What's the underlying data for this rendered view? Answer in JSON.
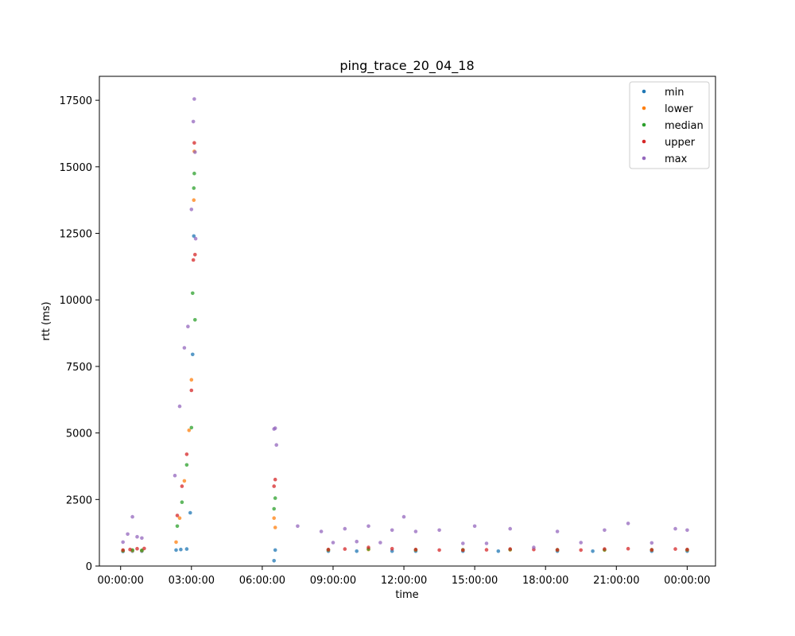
{
  "chart_data": {
    "type": "scatter",
    "title": "ping_trace_20_04_18",
    "xlabel": "time",
    "ylabel": "rtt (ms)",
    "x_unit": "hours of day (tick labels shown as HH:MM:SS)",
    "xlim": [
      -0.9,
      25.2
    ],
    "ylim": [
      0,
      18400
    ],
    "x_ticks": [
      0,
      3,
      6,
      9,
      12,
      15,
      18,
      21,
      24
    ],
    "x_tick_labels": [
      "00:00:00",
      "03:00:00",
      "06:00:00",
      "09:00:00",
      "12:00:00",
      "15:00:00",
      "18:00:00",
      "21:00:00",
      "00:00:00"
    ],
    "y_ticks": [
      0,
      2500,
      5000,
      7500,
      10000,
      12500,
      15000,
      17500
    ],
    "y_tick_labels": [
      "0",
      "2500",
      "5000",
      "7500",
      "10000",
      "12500",
      "15000",
      "17500"
    ],
    "grid": false,
    "legend_position": "top-right",
    "series": [
      {
        "name": "min",
        "color": "#1f77b4",
        "x": [
          0.1,
          0.5,
          0.9,
          2.35,
          2.55,
          2.8,
          2.95,
          3.05,
          3.1,
          6.5,
          6.55,
          8.8,
          10.0,
          11.5,
          12.5,
          14.5,
          16.0,
          18.5,
          20.0,
          22.5,
          24.0
        ],
        "y": [
          550,
          560,
          560,
          600,
          620,
          640,
          2000,
          7950,
          12400,
          200,
          600,
          560,
          560,
          560,
          560,
          560,
          560,
          560,
          560,
          560,
          560
        ]
      },
      {
        "name": "lower",
        "color": "#ff7f0e",
        "x": [
          0.1,
          0.5,
          0.9,
          2.35,
          2.5,
          2.7,
          2.9,
          3.0,
          3.1,
          3.12,
          6.5,
          6.55,
          8.8,
          10.5,
          12.5,
          14.5,
          16.5,
          18.5,
          20.5,
          22.5,
          24.0
        ],
        "y": [
          570,
          580,
          580,
          900,
          1800,
          3200,
          5100,
          7000,
          13750,
          15580,
          1800,
          1450,
          600,
          620,
          600,
          600,
          610,
          600,
          600,
          600,
          600
        ]
      },
      {
        "name": "median",
        "color": "#2ca02c",
        "x": [
          0.1,
          0.5,
          0.9,
          2.4,
          2.6,
          2.8,
          3.0,
          3.05,
          3.1,
          3.12,
          3.15,
          6.5,
          6.55,
          8.8,
          10.5,
          12.5,
          14.5,
          16.5,
          18.5,
          20.5,
          22.5,
          24.0
        ],
        "y": [
          580,
          600,
          590,
          1500,
          2400,
          3800,
          5200,
          10250,
          14200,
          14750,
          9250,
          2150,
          2550,
          610,
          640,
          610,
          610,
          620,
          610,
          610,
          610,
          610
        ]
      },
      {
        "name": "upper",
        "color": "#d62728",
        "x": [
          0.1,
          0.4,
          0.7,
          1.0,
          2.4,
          2.6,
          2.8,
          3.0,
          3.08,
          3.12,
          3.15,
          6.5,
          6.55,
          8.8,
          9.5,
          10.5,
          11.5,
          12.5,
          13.5,
          14.5,
          15.5,
          16.5,
          17.5,
          18.5,
          19.5,
          20.5,
          21.5,
          22.5,
          23.5,
          24.0
        ],
        "y": [
          600,
          620,
          650,
          660,
          1900,
          3000,
          4200,
          6600,
          11500,
          15900,
          11700,
          3000,
          3250,
          620,
          640,
          700,
          650,
          620,
          600,
          600,
          610,
          640,
          620,
          610,
          600,
          640,
          650,
          610,
          640,
          620
        ]
      },
      {
        "name": "max",
        "color": "#9467bd",
        "x": [
          0.1,
          0.3,
          0.5,
          0.7,
          0.9,
          2.3,
          2.5,
          2.7,
          2.85,
          3.0,
          3.08,
          3.12,
          3.15,
          3.18,
          6.5,
          6.55,
          6.6,
          7.5,
          8.5,
          9.0,
          9.5,
          10.0,
          10.5,
          11.0,
          11.5,
          12.0,
          12.5,
          13.5,
          14.5,
          15.0,
          15.5,
          16.5,
          17.5,
          18.5,
          19.5,
          20.5,
          21.5,
          22.5,
          23.5,
          24.0
        ],
        "y": [
          900,
          1200,
          1850,
          1100,
          1050,
          3400,
          6000,
          8200,
          9000,
          13400,
          16700,
          17550,
          15550,
          12300,
          5150,
          5180,
          4550,
          1500,
          1300,
          880,
          1400,
          920,
          1500,
          880,
          1350,
          1850,
          1300,
          1350,
          850,
          1500,
          850,
          1400,
          700,
          1300,
          880,
          1350,
          1600,
          870,
          1400,
          1350
        ]
      }
    ]
  }
}
